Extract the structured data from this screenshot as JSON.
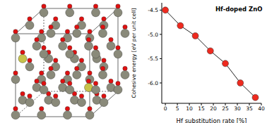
{
  "chart_data": {
    "type": "scatter",
    "annotation": "Hf-doped ZnO",
    "x_label": "Hf substitution rate [%]",
    "y_label": "Cohesive energy [eV per unit cell]",
    "x": [
      0,
      6.25,
      12.5,
      18.75,
      25,
      31.25,
      37.5
    ],
    "values": [
      -4.5,
      -4.82,
      -5.03,
      -5.34,
      -5.6,
      -6.0,
      -6.3
    ],
    "color": "#ee2a1f",
    "marker": "circle",
    "line_style": "solid",
    "grid": false,
    "xlim": [
      -1.5,
      40
    ],
    "xticks": [
      0,
      5,
      10,
      15,
      20,
      25,
      30,
      35,
      40
    ],
    "ylim": [
      -6.42,
      -4.35
    ],
    "yticks": [
      -4.5,
      {
        "value": -5,
        "label": "-5.0"
      },
      -5.5,
      {
        "value": -6,
        "label": "-6.0"
      }
    ]
  }
}
